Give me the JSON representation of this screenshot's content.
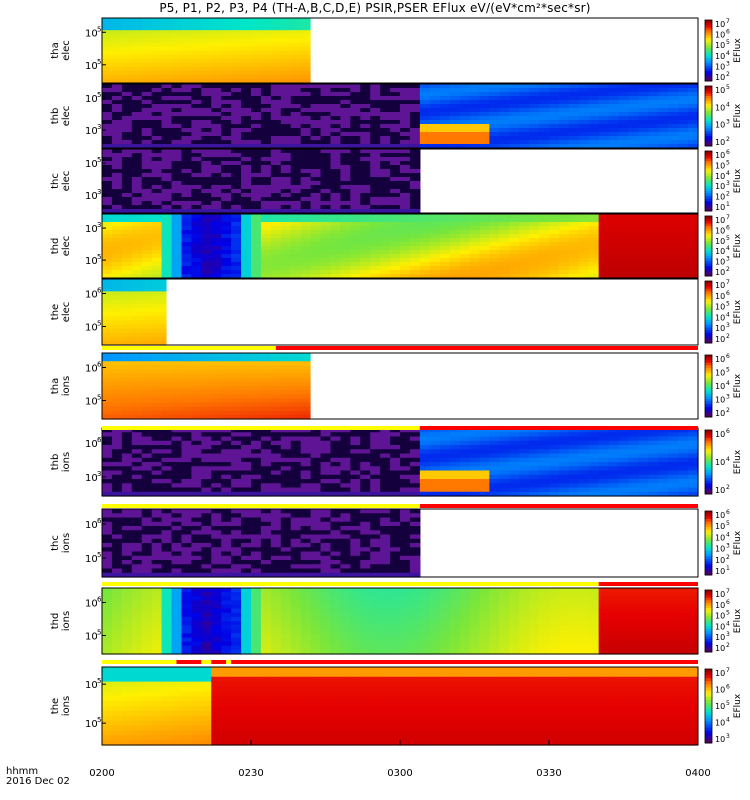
{
  "title": "P5, P1, P2, P3, P4 (TH-A,B,C,D,E) PSIR,PSER EFlux eV/(eV*cm²*sec*sr)",
  "time_axis": {
    "ticks": [
      "0200",
      "0230",
      "0300",
      "0330",
      "0400"
    ],
    "label_line1": "hhmm",
    "label_line2": "2016 Dec 02"
  },
  "colorbar_label": "EFlux",
  "chart_data": {
    "type": "heatmap",
    "x_range": [
      "0200",
      "0400"
    ],
    "panels": [
      {
        "label": [
          "tha",
          "elec"
        ],
        "yticks": [
          [
            "10",
            "5"
          ],
          [
            "10",
            "5"
          ]
        ],
        "cbar_ticks": [
          [
            "10",
            "7"
          ],
          [
            "10",
            "6"
          ],
          [
            "10",
            "5"
          ],
          [
            "10",
            "4"
          ],
          [
            "10",
            "3"
          ],
          [
            "10",
            "2"
          ]
        ],
        "data_end": "0242",
        "pattern": "gradient-yellow-orange"
      },
      {
        "label": [
          "thb",
          "elec"
        ],
        "yticks": [
          [
            "10",
            "5"
          ],
          [
            "10",
            "3"
          ]
        ],
        "cbar_ticks": [
          [
            "10",
            "5"
          ],
          [
            "10",
            "4"
          ],
          [
            "10",
            "3"
          ],
          [
            "10",
            "2"
          ]
        ],
        "data_end": "0400",
        "pattern": "noise-then-blue"
      },
      {
        "label": [
          "thc",
          "elec"
        ],
        "yticks": [
          [
            "10",
            "5"
          ],
          [
            "10",
            "3"
          ]
        ],
        "cbar_ticks": [
          [
            "10",
            "6"
          ],
          [
            "10",
            "5"
          ],
          [
            "10",
            "4"
          ],
          [
            "10",
            "3"
          ],
          [
            "10",
            "2"
          ],
          [
            "10",
            "1"
          ]
        ],
        "data_end": "0304",
        "pattern": "noise"
      },
      {
        "label": [
          "thd",
          "elec"
        ],
        "yticks": [
          [
            "10",
            "3"
          ],
          [
            "10",
            "5"
          ]
        ],
        "cbar_ticks": [
          [
            "10",
            "7"
          ],
          [
            "10",
            "6"
          ],
          [
            "10",
            "5"
          ],
          [
            "10",
            "4"
          ],
          [
            "10",
            "3"
          ],
          [
            "10",
            "2"
          ]
        ],
        "data_end": "0400",
        "pattern": "gap-yellow-red"
      },
      {
        "label": [
          "the",
          "elec"
        ],
        "yticks": [
          [
            "10",
            "6"
          ],
          [
            "10",
            "5"
          ]
        ],
        "cbar_ticks": [
          [
            "10",
            "7"
          ],
          [
            "10",
            "6"
          ],
          [
            "10",
            "5"
          ],
          [
            "10",
            "4"
          ],
          [
            "10",
            "3"
          ],
          [
            "10",
            "2"
          ]
        ],
        "data_end": "0213",
        "pattern": "gradient-yellow-orange"
      },
      {
        "label": [
          "tha",
          "ions"
        ],
        "yticks": [
          [
            "10",
            "6"
          ],
          [
            "10",
            "5"
          ]
        ],
        "cbar_ticks": [
          [
            "10",
            "6"
          ],
          [
            "10",
            "5"
          ],
          [
            "10",
            "4"
          ],
          [
            "10",
            "3"
          ],
          [
            "10",
            "2"
          ]
        ],
        "data_end": "0242",
        "pattern": "orange-red"
      },
      {
        "label": [
          "thb",
          "ions"
        ],
        "yticks": [
          [
            "10",
            "6"
          ],
          [
            "10",
            "3"
          ]
        ],
        "cbar_ticks": [
          [
            "10",
            "6"
          ],
          [
            "10",
            "4"
          ],
          [
            "10",
            "2"
          ]
        ],
        "data_end": "0400",
        "pattern": "noise-then-blue"
      },
      {
        "label": [
          "thc",
          "ions"
        ],
        "yticks": [
          [
            "10",
            "6"
          ],
          [
            "10",
            "5"
          ]
        ],
        "cbar_ticks": [
          [
            "10",
            "6"
          ],
          [
            "10",
            "5"
          ],
          [
            "10",
            "4"
          ],
          [
            "10",
            "3"
          ],
          [
            "10",
            "2"
          ],
          [
            "10",
            "1"
          ]
        ],
        "data_end": "0304",
        "pattern": "noise"
      },
      {
        "label": [
          "thd",
          "ions"
        ],
        "yticks": [
          [
            "10",
            "6"
          ],
          [
            "10",
            "5"
          ]
        ],
        "cbar_ticks": [
          [
            "10",
            "7"
          ],
          [
            "10",
            "6"
          ],
          [
            "10",
            "5"
          ],
          [
            "10",
            "4"
          ],
          [
            "10",
            "3"
          ],
          [
            "10",
            "2"
          ]
        ],
        "data_end": "0400",
        "pattern": "gap-green-red"
      },
      {
        "label": [
          "the",
          "ions"
        ],
        "yticks": [
          [
            "10",
            "5"
          ],
          [
            "10",
            "5"
          ]
        ],
        "cbar_ticks": [
          [
            "10",
            "7"
          ],
          [
            "10",
            "6"
          ],
          [
            "10",
            "5"
          ],
          [
            "10",
            "4"
          ],
          [
            "10",
            "3"
          ]
        ],
        "data_end": "0400",
        "pattern": "red-block"
      }
    ],
    "mode_bars": [
      {
        "after_panel": 5,
        "segments": [
          {
            "from": "0200",
            "to": "0235",
            "color": "#ffff00"
          },
          {
            "from": "0235",
            "to": "0400",
            "color": "#ff0000"
          }
        ]
      },
      {
        "after_panel": 6,
        "segments": [
          {
            "from": "0200",
            "to": "0304",
            "color": "#ffff00"
          },
          {
            "from": "0304",
            "to": "0400",
            "color": "#ff0000"
          }
        ]
      },
      {
        "after_panel": 7,
        "segments": [
          {
            "from": "0200",
            "to": "0304",
            "color": "#ffff00"
          },
          {
            "from": "0304",
            "to": "0400",
            "color": "#ff0000"
          }
        ]
      },
      {
        "after_panel": 8,
        "segments": [
          {
            "from": "0200",
            "to": "0340",
            "color": "#ffff00"
          },
          {
            "from": "0340",
            "to": "0400",
            "color": "#ff0000"
          }
        ]
      },
      {
        "after_panel": 9,
        "segments": [
          {
            "from": "0200",
            "to": "0215",
            "color": "#ffff00"
          },
          {
            "from": "0215",
            "to": "0220",
            "color": "#ff0000"
          },
          {
            "from": "0220",
            "to": "0222",
            "color": "#ffff00"
          },
          {
            "from": "0222",
            "to": "0225",
            "color": "#ff0000"
          },
          {
            "from": "0225",
            "to": "0226",
            "color": "#ffff00"
          },
          {
            "from": "0226",
            "to": "0400",
            "color": "#ff0000"
          }
        ]
      }
    ]
  }
}
